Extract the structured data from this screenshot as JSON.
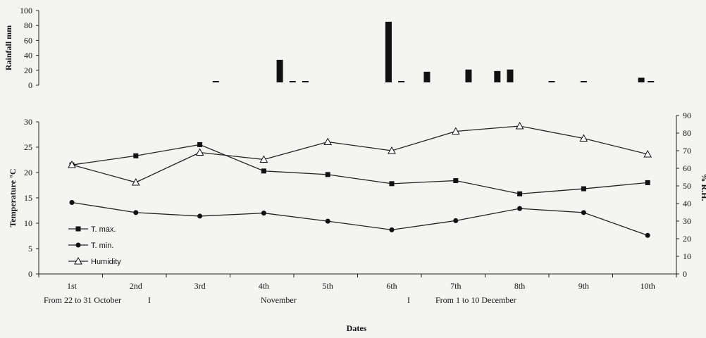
{
  "chart_data": [
    {
      "type": "bar",
      "ylabel": "Rainfall mm",
      "ylim": [
        0,
        100
      ],
      "yticks": [
        0,
        20,
        40,
        60,
        80,
        100
      ],
      "bars": [
        {
          "x": 3.25,
          "value": 3
        },
        {
          "x": 4.25,
          "value": 34
        },
        {
          "x": 4.45,
          "value": 4
        },
        {
          "x": 4.65,
          "value": 5
        },
        {
          "x": 5.95,
          "value": 85
        },
        {
          "x": 6.15,
          "value": 4
        },
        {
          "x": 6.55,
          "value": 18
        },
        {
          "x": 7.2,
          "value": 21
        },
        {
          "x": 7.65,
          "value": 19
        },
        {
          "x": 7.85,
          "value": 21
        },
        {
          "x": 8.5,
          "value": 4
        },
        {
          "x": 9.0,
          "value": 4
        },
        {
          "x": 9.9,
          "value": 10
        },
        {
          "x": 10.05,
          "value": 4
        }
      ]
    },
    {
      "type": "line",
      "xlabel": "Dates",
      "ylabel": "Temperature °C",
      "y2label": "% R.H.",
      "ylim": [
        0,
        30
      ],
      "y2lim": [
        0,
        90
      ],
      "yticks": [
        0,
        5,
        10,
        15,
        20,
        25,
        30
      ],
      "y2ticks": [
        0,
        10,
        20,
        30,
        40,
        50,
        60,
        70,
        80,
        90
      ],
      "categories": [
        "1st",
        "2nd",
        "3rd",
        "4th",
        "5th",
        "6th",
        "7th",
        "8th",
        "9th",
        "10th"
      ],
      "periods": [
        "From 22 to 31 October",
        "November",
        "From 1 to 10 December"
      ],
      "separator": "I",
      "legend_position": "bottom-left",
      "series": [
        {
          "name": "T. max.",
          "marker": "square",
          "axis": "left",
          "values": [
            21.5,
            23.3,
            25.5,
            20.3,
            19.6,
            17.8,
            18.4,
            15.8,
            16.8,
            18.0
          ]
        },
        {
          "name": "T. min.",
          "marker": "circle",
          "axis": "left",
          "values": [
            14.1,
            12.1,
            11.4,
            12.0,
            10.4,
            8.7,
            10.5,
            12.9,
            12.1,
            7.6
          ]
        },
        {
          "name": "Humidity",
          "marker": "triangle",
          "axis": "right",
          "values": [
            62,
            52,
            69,
            65,
            75,
            70,
            81,
            84,
            77,
            68
          ]
        }
      ]
    }
  ]
}
